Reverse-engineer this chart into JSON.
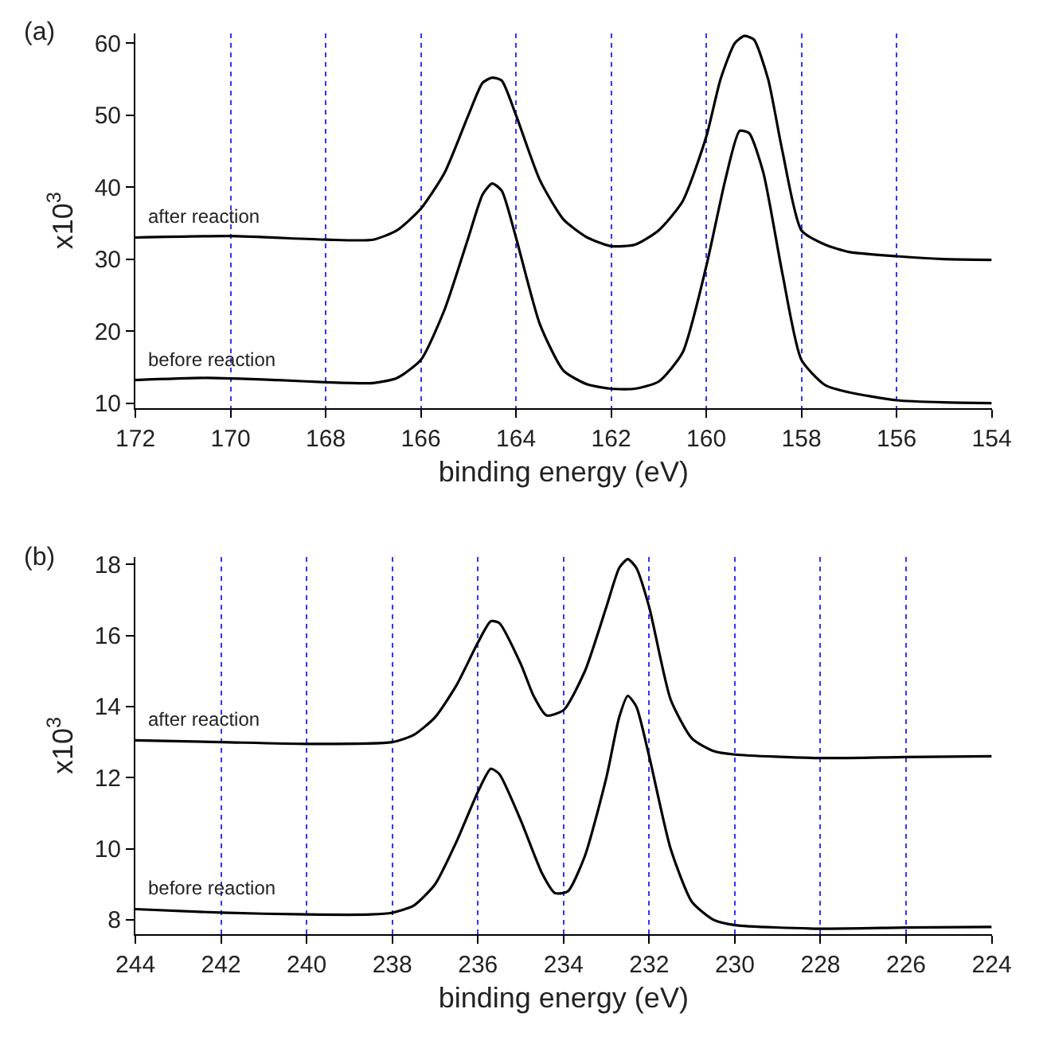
{
  "chart_data": [
    {
      "type": "line",
      "annotations": [
        "(a)"
      ],
      "xlabel": "binding energy (eV)",
      "ylabel": "x10$^{3}$",
      "xlim": [
        172,
        154
      ],
      "xticks": [
        172,
        170,
        168,
        166,
        164,
        162,
        160,
        158,
        156,
        154
      ],
      "ylim": [
        9.3,
        61.4
      ],
      "yticks": [
        10,
        20,
        30,
        40,
        50,
        60
      ],
      "grid": "x",
      "legend": false,
      "marker": "none",
      "line_style": "solid",
      "series": [
        {
          "name": "after reaction",
          "color": "#000000",
          "x": [
            172,
            170,
            168,
            167,
            166.5,
            166,
            165.5,
            165,
            164.7,
            164.5,
            164.3,
            164,
            163.5,
            163,
            162.5,
            162,
            161.5,
            161,
            160.5,
            160,
            159.7,
            159.4,
            159.2,
            159,
            158.7,
            158.4,
            158,
            157.5,
            157,
            156,
            155,
            154
          ],
          "values": [
            33,
            33.2,
            32.7,
            32.7,
            34,
            37,
            42,
            50,
            54.5,
            55.2,
            54.8,
            50,
            41,
            35.5,
            33,
            31.8,
            32,
            34,
            38,
            47,
            55,
            60,
            61,
            60.5,
            55,
            45,
            34,
            32,
            31,
            30.4,
            30,
            29.9
          ]
        },
        {
          "name": "before reaction",
          "color": "#000000",
          "x": [
            172,
            170.5,
            169,
            168,
            167,
            166.5,
            166,
            165.5,
            165,
            164.7,
            164.5,
            164.3,
            164,
            163.5,
            163,
            162.5,
            162,
            161.5,
            161,
            160.5,
            160,
            159.6,
            159.3,
            159.1,
            158.8,
            158.4,
            158,
            157.5,
            157,
            156,
            155,
            154
          ],
          "values": [
            13.2,
            13.5,
            13.2,
            12.9,
            12.8,
            13.5,
            16,
            23,
            33,
            39,
            40.5,
            39.5,
            33,
            21,
            14.5,
            12.6,
            12,
            12,
            13,
            17,
            29,
            41,
            47.8,
            47.5,
            42,
            28,
            16,
            12.5,
            11.5,
            10.4,
            10.1,
            10
          ]
        }
      ]
    },
    {
      "type": "line",
      "annotations": [
        "(b)"
      ],
      "xlabel": "binding energy (eV)",
      "ylabel": "x10$^{3}$",
      "xlim": [
        244,
        224
      ],
      "xticks": [
        244,
        242,
        240,
        238,
        236,
        234,
        232,
        230,
        228,
        226,
        224
      ],
      "ylim": [
        7.6,
        18.2
      ],
      "yticks": [
        8,
        10,
        12,
        14,
        16,
        18
      ],
      "grid": "x",
      "legend": false,
      "marker": "none",
      "line_style": "solid",
      "series": [
        {
          "name": "after reaction",
          "color": "#000000",
          "x": [
            244,
            242,
            240,
            238,
            237.5,
            237,
            236.5,
            236,
            235.7,
            235.5,
            235,
            234.7,
            234.4,
            234,
            233.5,
            233,
            232.7,
            232.5,
            232.3,
            232,
            231.5,
            231,
            230.5,
            230,
            228,
            226,
            224
          ],
          "values": [
            13.05,
            13.0,
            12.95,
            13.0,
            13.2,
            13.7,
            14.6,
            15.8,
            16.4,
            16.35,
            15.2,
            14.3,
            13.75,
            13.9,
            15.0,
            16.8,
            17.9,
            18.15,
            17.9,
            16.8,
            14.2,
            13.1,
            12.75,
            12.65,
            12.55,
            12.58,
            12.6
          ]
        },
        {
          "name": "before reaction",
          "color": "#000000",
          "x": [
            244,
            242,
            240,
            238.5,
            238,
            237.5,
            237,
            236.5,
            236,
            235.7,
            235.5,
            235,
            234.5,
            234.2,
            233.9,
            233.5,
            233,
            232.7,
            232.5,
            232.3,
            232,
            231.5,
            231,
            230.5,
            230,
            228,
            226,
            224
          ],
          "values": [
            8.3,
            8.2,
            8.15,
            8.15,
            8.2,
            8.4,
            9.0,
            10.2,
            11.6,
            12.25,
            12.1,
            10.8,
            9.3,
            8.75,
            8.8,
            9.8,
            12.0,
            13.7,
            14.3,
            14.0,
            12.6,
            10.0,
            8.5,
            8.0,
            7.85,
            7.75,
            7.78,
            7.8
          ]
        }
      ]
    }
  ]
}
